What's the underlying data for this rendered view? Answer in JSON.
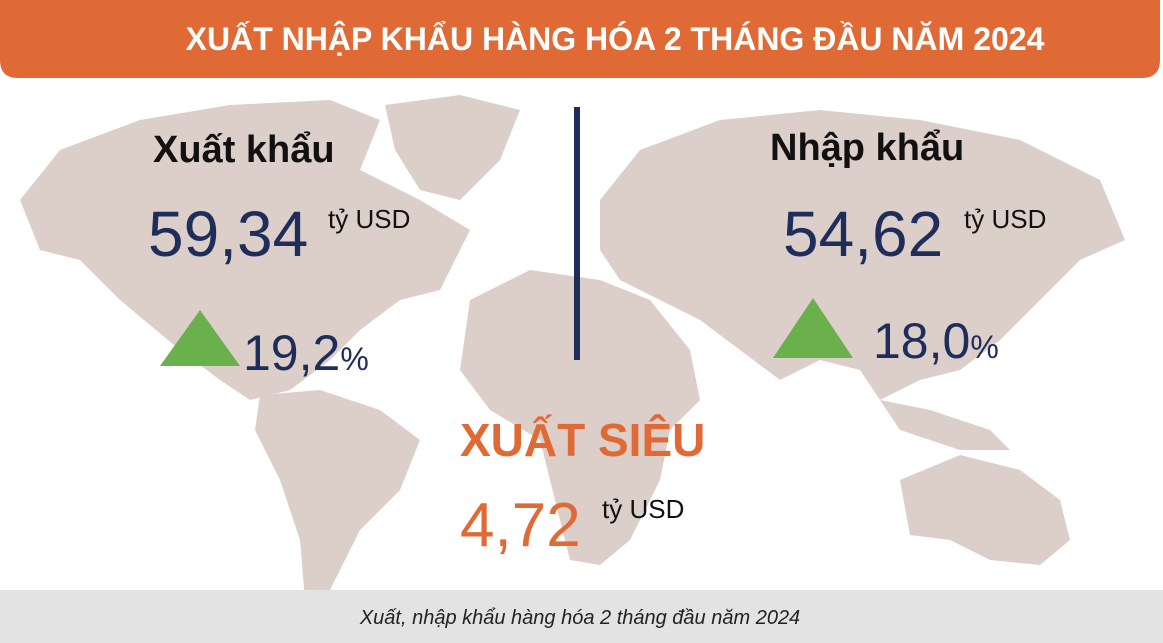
{
  "header": {
    "title": "XUẤT NHẬP KHẨU HÀNG HÓA  2 THÁNG ĐẦU NĂM 2024"
  },
  "export": {
    "label": "Xuất khẩu",
    "value": "59,34",
    "unit": "tỷ USD",
    "change": "19,2",
    "change_unit": "%"
  },
  "import": {
    "label": "Nhập khẩu",
    "value": "54,62",
    "unit": "tỷ USD",
    "change": "18,0",
    "change_unit": "%"
  },
  "surplus": {
    "label": "XUẤT SIÊU",
    "value": "4,72",
    "unit": "tỷ USD"
  },
  "caption": "Xuất, nhập khẩu hàng hóa 2 tháng đầu năm 2024"
}
